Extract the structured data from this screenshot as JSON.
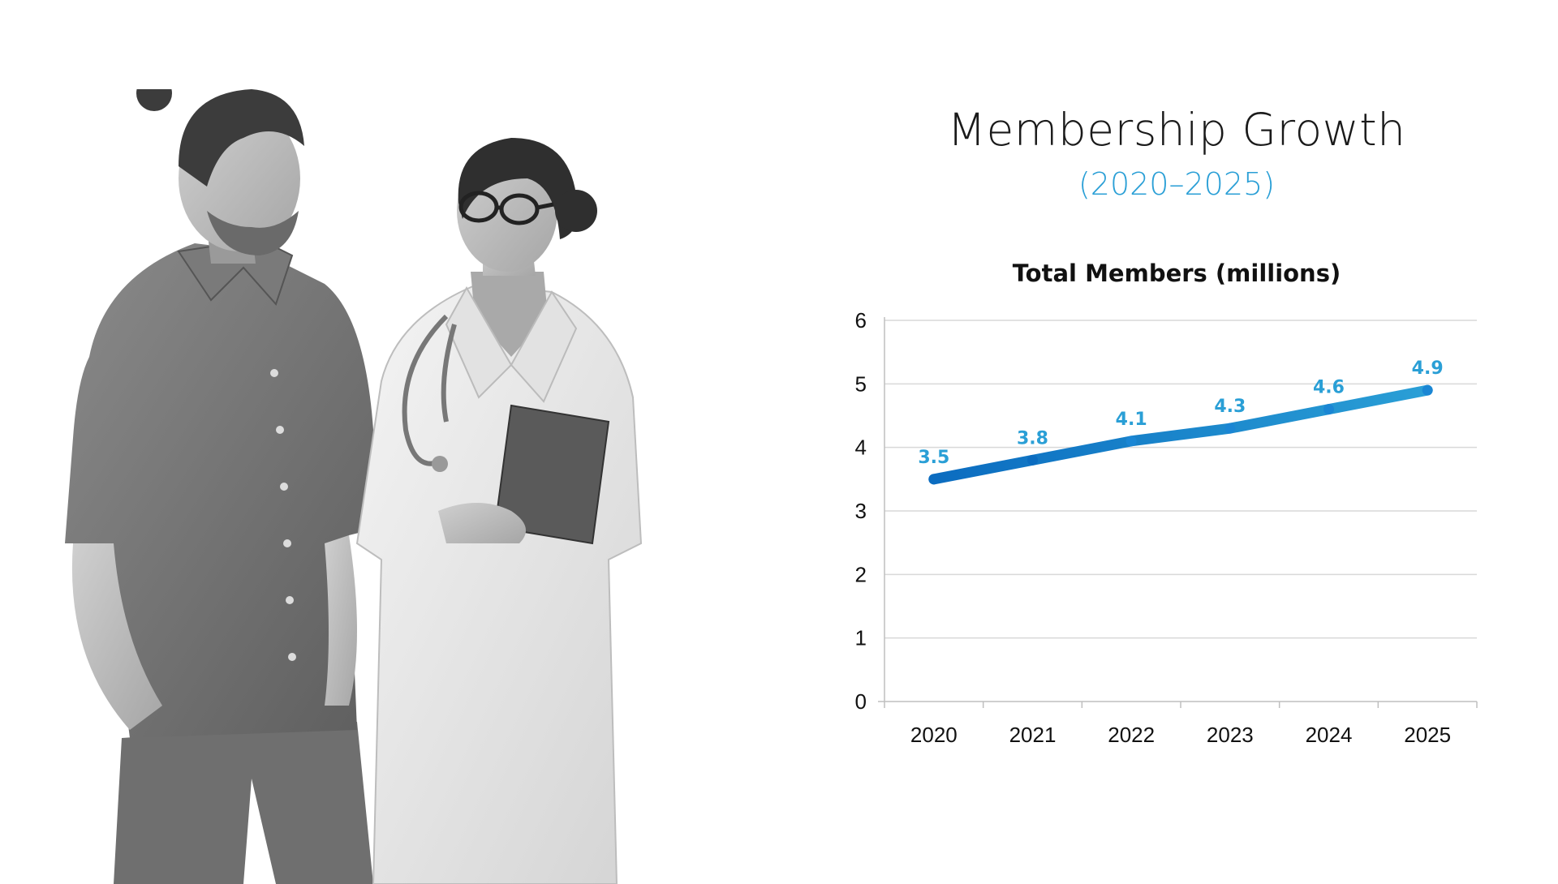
{
  "slide": {
    "title": "Membership Growth",
    "subtitle": "(2020–2025)"
  },
  "colors": {
    "line": "#1a86d4",
    "line_dark": "#0b6cc0",
    "data_label": "#2a9fd6",
    "grid": "#d9d9d9",
    "text": "#111111"
  },
  "photo": {
    "description_icon": "people-photo"
  },
  "chart_data": {
    "type": "line",
    "title": "Total Members (millions)",
    "categories": [
      "2020",
      "2021",
      "2022",
      "2023",
      "2024",
      "2025"
    ],
    "series": [
      {
        "values": [
          3.5,
          3.8,
          4.1,
          4.3,
          4.6,
          4.9
        ],
        "data_labels": [
          "3.5",
          "3.8",
          "4.1",
          "4.3",
          "4.6",
          "4.9"
        ]
      }
    ],
    "ylim": [
      0,
      6
    ],
    "yticks": [
      "0",
      "1",
      "2",
      "3",
      "4",
      "5",
      "6"
    ],
    "grid": true,
    "legend": "none"
  }
}
